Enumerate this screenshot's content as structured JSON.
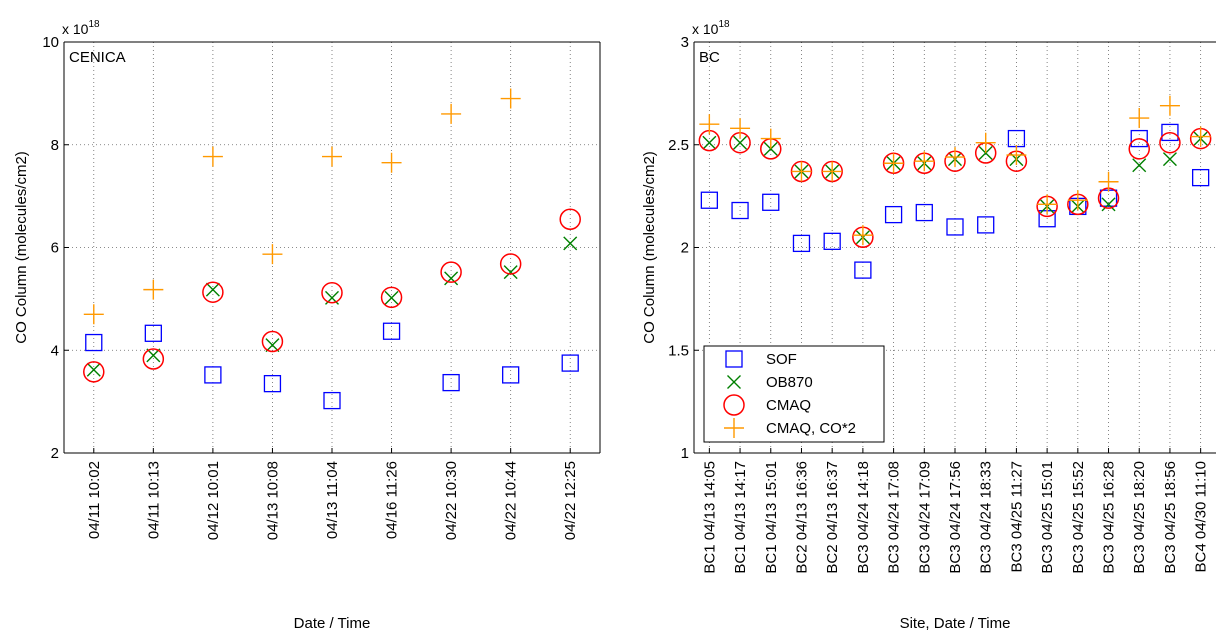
{
  "figure": {
    "legend": [
      {
        "name": "SOF",
        "marker": "square",
        "color": "#0000ff"
      },
      {
        "name": "OB870",
        "marker": "x",
        "color": "#008000"
      },
      {
        "name": "CMAQ",
        "marker": "circle",
        "color": "#ff0000"
      },
      {
        "name": "CMAQ, CO*2",
        "marker": "plus",
        "color": "#ff9900"
      }
    ]
  },
  "chart_data": [
    {
      "type": "scatter",
      "panel_label": "CENICA",
      "xlabel": "Date / Time",
      "ylabel": "CO Column (molecules/cm2)",
      "exponent_base": "x 10",
      "exponent_power": "18",
      "ylim": [
        2,
        10
      ],
      "yticks": [
        2,
        4,
        6,
        8,
        10
      ],
      "grid": true,
      "categories": [
        "04/11 10:02",
        "04/11 10:13",
        "04/12 10:01",
        "04/13 10:08",
        "04/13 11:04",
        "04/16 11:26",
        "04/22 10:30",
        "04/22 10:44",
        "04/22 12:25"
      ],
      "series": [
        {
          "name": "SOF",
          "values": [
            4.15,
            4.33,
            3.52,
            3.35,
            3.02,
            4.37,
            3.37,
            3.52,
            3.75
          ]
        },
        {
          "name": "OB870",
          "values": [
            3.62,
            3.9,
            5.18,
            4.1,
            5.02,
            5.02,
            5.4,
            5.52,
            6.08
          ]
        },
        {
          "name": "CMAQ",
          "values": [
            3.58,
            3.83,
            5.13,
            4.17,
            5.12,
            5.03,
            5.52,
            5.68,
            6.55
          ]
        },
        {
          "name": "CMAQ, CO*2",
          "values": [
            4.7,
            5.18,
            7.77,
            5.87,
            7.77,
            7.65,
            8.6,
            8.9,
            null
          ]
        }
      ]
    },
    {
      "type": "scatter",
      "panel_label": "BC",
      "xlabel": "Site, Date / Time",
      "ylabel": "CO Column (molecules/cm2)",
      "exponent_base": "x 10",
      "exponent_power": "18",
      "ylim": [
        1,
        3
      ],
      "yticks": [
        1,
        1.5,
        2,
        2.5,
        3
      ],
      "grid": true,
      "legend_position": "lower-left",
      "categories": [
        "BC1 04/13 14:05",
        "BC1 04/13 14:17",
        "BC1 04/13 15:01",
        "BC2 04/13 16:36",
        "BC2 04/13 16:37",
        "BC3 04/24 14:18",
        "BC3 04/24 17:08",
        "BC3 04/24 17:09",
        "BC3 04/24 17:56",
        "BC3 04/24 18:33",
        "BC3 04/25 11:27",
        "BC3 04/25 15:01",
        "BC3 04/25 15:52",
        "BC3 04/25 16:28",
        "BC3 04/25 18:20",
        "BC3 04/25 18:56",
        "BC4 04/30 11:10"
      ],
      "series": [
        {
          "name": "SOF",
          "values": [
            2.23,
            2.18,
            2.22,
            2.02,
            2.03,
            1.89,
            2.16,
            2.17,
            2.1,
            2.11,
            2.53,
            2.14,
            2.2,
            2.24,
            2.53,
            2.56,
            2.34
          ]
        },
        {
          "name": "OB870",
          "values": [
            2.51,
            2.51,
            2.48,
            2.37,
            2.37,
            2.05,
            2.41,
            2.41,
            2.43,
            2.46,
            2.43,
            2.2,
            2.2,
            2.21,
            2.4,
            2.43,
            2.53
          ]
        },
        {
          "name": "CMAQ",
          "values": [
            2.52,
            2.51,
            2.48,
            2.37,
            2.37,
            2.05,
            2.41,
            2.41,
            2.42,
            2.46,
            2.42,
            2.2,
            2.21,
            2.24,
            2.48,
            2.51,
            2.53
          ]
        },
        {
          "name": "CMAQ, CO*2",
          "values": [
            2.6,
            2.58,
            2.53,
            2.37,
            2.37,
            2.06,
            2.41,
            2.42,
            2.44,
            2.51,
            2.45,
            2.21,
            2.23,
            2.32,
            2.63,
            2.69,
            2.54
          ]
        }
      ]
    }
  ]
}
